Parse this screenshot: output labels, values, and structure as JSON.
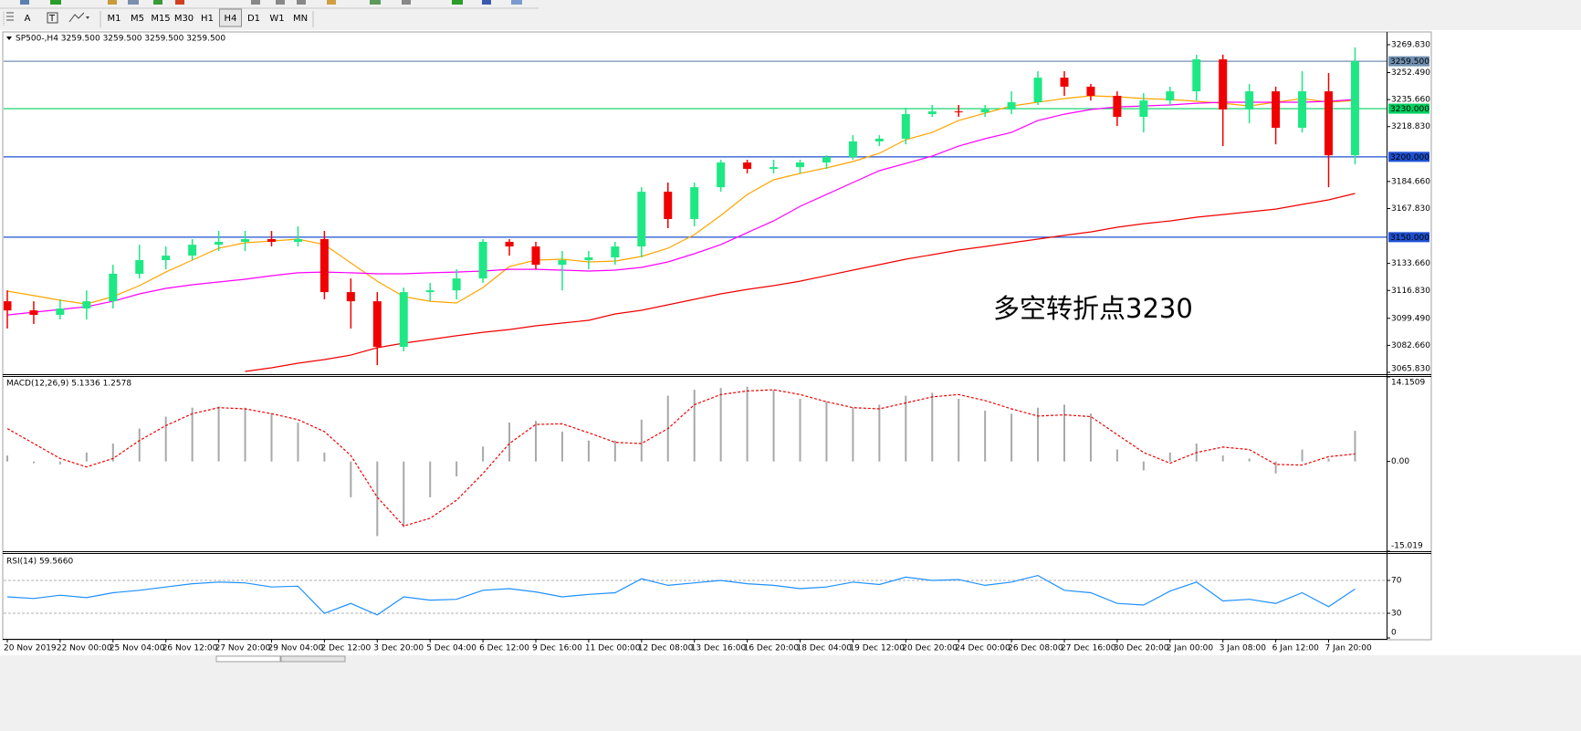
{
  "toolbar": {
    "tools": [
      "A",
      "T"
    ],
    "timeframes": [
      "M1",
      "M5",
      "M15",
      "M30",
      "H1",
      "H4",
      "D1",
      "W1",
      "MN"
    ],
    "active": "H4"
  },
  "chart_data": [
    {
      "type": "candlestick",
      "title": "SP500-,H4  3259.500 3259.500 3259.500 3259.500",
      "annotation": "多空转折点3230",
      "annotation_color": "#f01010",
      "categories": [
        "20 Nov 2019",
        null,
        "22 Nov 00:00",
        null,
        "25 Nov 04:00",
        null,
        "26 Nov 12:00",
        null,
        "27 Nov 20:00",
        null,
        "29 Nov 04:00",
        null,
        "2 Dec 12:00",
        null,
        "3 Dec 20:00",
        null,
        "5 Dec 04:00",
        null,
        "6 Dec 12:00",
        null,
        "9 Dec 16:00",
        null,
        "11 Dec 00:00",
        null,
        "12 Dec 08:00",
        null,
        "13 Dec 16:00",
        null,
        "16 Dec 20:00",
        null,
        "18 Dec 04:00",
        null,
        "19 Dec 12:00",
        null,
        "20 Dec 20:00",
        null,
        "24 Dec 00:00",
        null,
        "26 Dec 08:00",
        null,
        "27 Dec 16:00",
        null,
        "30 Dec 20:00",
        null,
        "2 Jan 00:00",
        null,
        "3 Jan 08:00",
        null,
        "6 Jan 12:00",
        null,
        "7 Jan 20:00",
        null
      ],
      "open": [
        3110.1,
        3104.4,
        3101.6,
        3105.6,
        3110.1,
        3127.2,
        3135.7,
        3138.5,
        3145.3,
        3147.1,
        3148.8,
        3147.1,
        3148.8,
        3115.8,
        3110.1,
        3081.7,
        3115.8,
        3116.9,
        3124.3,
        3147.1,
        3144.2,
        3132.8,
        3135.7,
        3137.4,
        3144.2,
        3178.3,
        3161.3,
        3181.1,
        3196.5,
        3192.5,
        3193.6,
        3196.5,
        3199.9,
        3209.6,
        3211.3,
        3226.6,
        3228.3,
        3227.7,
        3229.5,
        3234.0,
        3249.3,
        3243.7,
        3238.0,
        3224.9,
        3235.1,
        3240.8,
        3260.7,
        3229.5,
        3240.8,
        3218.1,
        3240.8,
        3201.0
      ],
      "high": [
        3116.9,
        3110.1,
        3111.3,
        3116.9,
        3132.8,
        3145.3,
        3144.2,
        3148.8,
        3153.9,
        3153.9,
        3153.9,
        3156.7,
        3153.9,
        3124.3,
        3115.8,
        3118.6,
        3121.5,
        3130.0,
        3148.8,
        3148.8,
        3147.1,
        3141.4,
        3141.4,
        3147.1,
        3181.1,
        3184.0,
        3184.0,
        3198.2,
        3198.2,
        3198.2,
        3198.2,
        3201.0,
        3213.5,
        3213.5,
        3230.6,
        3232.3,
        3232.3,
        3232.3,
        3240.8,
        3253.3,
        3253.3,
        3245.4,
        3240.8,
        3239.7,
        3243.7,
        3263.6,
        3263.6,
        3245.4,
        3243.7,
        3253.3,
        3252.2,
        3268.1
      ],
      "low": [
        3093.1,
        3095.9,
        3098.8,
        3098.8,
        3105.6,
        3124.3,
        3130.0,
        3135.7,
        3141.4,
        3141.4,
        3144.2,
        3144.2,
        3111.3,
        3093.1,
        3070.3,
        3078.9,
        3110.1,
        3111.3,
        3121.5,
        3138.5,
        3130.0,
        3116.9,
        3130.0,
        3132.8,
        3137.4,
        3155.6,
        3156.7,
        3178.3,
        3189.7,
        3189.7,
        3189.7,
        3192.5,
        3198.2,
        3206.7,
        3207.8,
        3224.9,
        3224.9,
        3224.9,
        3226.6,
        3232.3,
        3238.0,
        3235.1,
        3219.2,
        3215.2,
        3232.3,
        3235.1,
        3206.7,
        3220.9,
        3207.8,
        3215.2,
        3181.1,
        3195.3
      ],
      "close": [
        3104.4,
        3101.6,
        3105.6,
        3110.1,
        3127.2,
        3135.7,
        3138.5,
        3145.3,
        3147.1,
        3148.8,
        3147.1,
        3148.8,
        3115.8,
        3110.1,
        3081.7,
        3115.8,
        3116.9,
        3124.3,
        3147.1,
        3144.2,
        3132.8,
        3135.7,
        3137.4,
        3144.2,
        3178.3,
        3161.3,
        3181.1,
        3196.5,
        3192.5,
        3193.6,
        3196.5,
        3199.9,
        3209.6,
        3211.3,
        3226.6,
        3228.3,
        3227.7,
        3229.5,
        3234.0,
        3249.3,
        3243.7,
        3238.0,
        3224.9,
        3235.1,
        3240.8,
        3260.7,
        3229.5,
        3240.8,
        3218.1,
        3240.8,
        3201.0,
        3259.5
      ],
      "up_color": "#1ee884",
      "down_color": "#f00000",
      "moving_averages": [
        {
          "color": "#ffa500",
          "values": [
            3116.4,
            3113.6,
            3110.7,
            3108.4,
            3113.0,
            3119.8,
            3128.3,
            3135.7,
            3143.1,
            3146.5,
            3147.6,
            3148.8,
            3145.3,
            3134.0,
            3122.6,
            3113.0,
            3110.1,
            3109.0,
            3118.6,
            3131.7,
            3135.7,
            3136.3,
            3134.6,
            3135.1,
            3138.0,
            3143.1,
            3151.6,
            3163.5,
            3176.6,
            3185.7,
            3189.7,
            3193.1,
            3197.1,
            3202.2,
            3210.7,
            3215.2,
            3222.6,
            3227.2,
            3231.7,
            3234.0,
            3236.3,
            3238.0,
            3237.4,
            3236.3,
            3235.7,
            3234.6,
            3233.4,
            3231.7,
            3234.0,
            3236.3,
            3234.0,
            3235.1
          ]
        },
        {
          "color": "#ff00ff",
          "values": [
            3101.6,
            3103.3,
            3105.0,
            3106.7,
            3110.1,
            3114.7,
            3118.1,
            3120.4,
            3122.1,
            3123.8,
            3126.0,
            3127.8,
            3128.3,
            3127.8,
            3127.2,
            3127.2,
            3127.8,
            3128.3,
            3128.9,
            3130.0,
            3130.0,
            3129.5,
            3128.9,
            3129.5,
            3131.2,
            3134.6,
            3139.7,
            3145.3,
            3152.8,
            3160.1,
            3169.2,
            3176.6,
            3184.0,
            3191.4,
            3195.9,
            3200.5,
            3206.7,
            3211.3,
            3215.2,
            3222.6,
            3226.6,
            3229.5,
            3231.1,
            3231.7,
            3232.3,
            3233.4,
            3234.0,
            3234.0,
            3234.0,
            3234.0,
            3234.6,
            3235.7
          ]
        },
        {
          "color": "#f00000",
          "values": [
            null,
            null,
            null,
            null,
            null,
            null,
            null,
            null,
            null,
            3066.4,
            3068.7,
            3071.5,
            3073.8,
            3076.6,
            3081.2,
            3084.0,
            3086.3,
            3088.6,
            3090.8,
            3092.5,
            3094.8,
            3096.5,
            3098.2,
            3102.2,
            3104.5,
            3107.9,
            3111.3,
            3114.7,
            3117.5,
            3119.8,
            3122.6,
            3126.0,
            3129.5,
            3132.9,
            3136.3,
            3139.1,
            3142.0,
            3144.2,
            3146.5,
            3148.8,
            3151.1,
            3153.3,
            3156.2,
            3158.4,
            3160.1,
            3162.4,
            3164.1,
            3165.8,
            3167.5,
            3170.4,
            3173.2,
            3177.2
          ]
        }
      ],
      "levels": {
        "values": [
          3259.5,
          3230,
          3200,
          3150
        ],
        "value_labels": [
          "3259.500",
          "3230.000",
          "3200.000",
          "3150.000"
        ],
        "colors": [
          "#7090b0",
          "#00d060",
          "#1e50d0",
          "#1e50d0"
        ]
      },
      "ylim": [
        3064.7,
        3277.2
      ],
      "yticks": [
        {
          "value": 3269.83,
          "label": "3269.830"
        },
        {
          "value": 3252.49,
          "label": "3252.490"
        },
        {
          "value": 3235.66,
          "label": "3235.660"
        },
        {
          "value": 3218.83,
          "label": "3218.830"
        },
        {
          "value": 3184.66,
          "label": "3184.660"
        },
        {
          "value": 3167.83,
          "label": "3167.830"
        },
        {
          "value": 3133.66,
          "label": "3133.660"
        },
        {
          "value": 3116.83,
          "label": "3116.830"
        },
        {
          "value": 3099.49,
          "label": "3099.490"
        },
        {
          "value": 3082.66,
          "label": "3082.660"
        },
        {
          "value": 3065.83,
          "label": "3065.830"
        }
      ],
      "grid": false
    },
    {
      "type": "macd",
      "title": "MACD(12,26,9) 5.1336 1.2578",
      "histogram": {
        "color": "#a8a8a8",
        "values": [
          1.0,
          -0.3,
          -0.5,
          1.5,
          3.0,
          5.5,
          7.5,
          9.0,
          9.2,
          9.0,
          8.0,
          6.5,
          1.5,
          -6.0,
          -12.5,
          -11.0,
          -6.0,
          -2.5,
          2.5,
          6.5,
          6.8,
          5.0,
          3.5,
          3.5,
          7.0,
          11.0,
          12.0,
          12.3,
          12.5,
          12.0,
          10.5,
          10.0,
          9.0,
          9.5,
          11.0,
          11.5,
          10.5,
          8.5,
          8.0,
          9.0,
          9.5,
          8.0,
          2.0,
          -1.5,
          1.5,
          3.0,
          1.0,
          0.5,
          -2.0,
          2.0,
          0.5,
          5.1336
        ]
      },
      "signal": {
        "color": "#f00000",
        "values": [
          5.5,
          3.0,
          0.5,
          -0.9,
          0.5,
          3.5,
          6.0,
          8.0,
          9.0,
          8.8,
          8.0,
          7.0,
          5.0,
          1.0,
          -6.0,
          -10.8,
          -9.5,
          -6.5,
          -2.0,
          3.0,
          6.2,
          6.3,
          4.8,
          3.2,
          3.0,
          5.5,
          9.5,
          11.2,
          11.8,
          12.0,
          11.2,
          10.0,
          9.0,
          8.8,
          9.8,
          10.8,
          11.2,
          10.2,
          8.8,
          7.6,
          7.8,
          7.5,
          4.5,
          1.5,
          -0.3,
          1.5,
          2.4,
          2.0,
          -0.5,
          -0.6,
          0.8,
          1.2578
        ]
      },
      "ylim": [
        -15.019,
        14.1509
      ],
      "yticks": [
        14.1509,
        {
          "value": 0,
          "label": "0.00"
        },
        -15.019
      ]
    },
    {
      "type": "line",
      "title": "RSI(14) 59.5660",
      "color": "#1e90ff",
      "values": [
        50,
        48,
        52,
        49,
        55,
        58,
        62,
        66,
        68,
        67,
        62,
        63,
        30,
        42,
        28,
        50,
        46,
        47,
        58,
        60,
        56,
        50,
        53,
        55,
        72,
        64,
        67,
        70,
        66,
        64,
        60,
        62,
        68,
        65,
        74,
        70,
        71,
        64,
        68,
        76,
        58,
        55,
        42,
        40,
        57,
        68,
        45,
        47,
        42,
        55,
        38,
        59.566
      ],
      "levels": [
        70,
        30
      ],
      "ylim": [
        0,
        100
      ],
      "yticks": [
        70,
        30,
        0
      ]
    }
  ]
}
